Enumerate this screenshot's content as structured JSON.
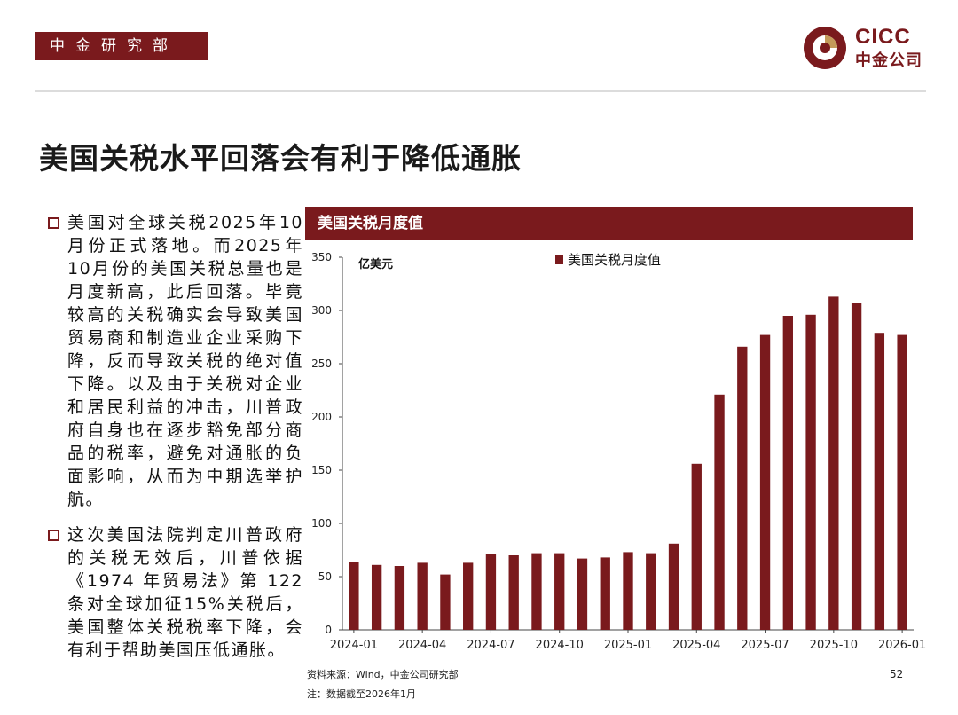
{
  "header": {
    "dept": "中金研究部",
    "logo_en": "CICC",
    "logo_cn": "中金公司"
  },
  "title": "美国关税水平回落会有利于降低通胀",
  "bullets": [
    "美国对全球关税2025年10月份正式落地。而2025年10月份的美国关税总量也是月度新高，此后回落。毕竟较高的关税确实会导致美国贸易商和制造业企业采购下降，反而导致关税的绝对值下降。以及由于关税对企业和居民利益的冲击，川普政府自身也在逐步豁免部分商品的税率，避免对通胀的负面影响，从而为中期选举护航。",
    "这次美国法院判定川普政府的关税无效后，川普依据《1974 年贸易法》第 122 条对全球加征15%关税后，美国整体关税税率下降，会有利于帮助美国压低通胀。"
  ],
  "chart_header": "美国关税月度值",
  "chart_data": {
    "type": "bar",
    "unit_label": "亿美元",
    "legend": "美国关税月度值",
    "legend_position": "top-right",
    "color": "#7a1a1d",
    "ylim": [
      0,
      350
    ],
    "yticks": [
      0,
      50,
      100,
      150,
      200,
      250,
      300,
      350
    ],
    "categories": [
      "2024-01",
      "2024-02",
      "2024-03",
      "2024-04",
      "2024-05",
      "2024-06",
      "2024-07",
      "2024-08",
      "2024-09",
      "2024-10",
      "2024-11",
      "2024-12",
      "2025-01",
      "2025-02",
      "2025-03",
      "2025-04",
      "2025-05",
      "2025-06",
      "2025-07",
      "2025-08",
      "2025-09",
      "2025-10",
      "2025-11",
      "2025-12",
      "2026-01"
    ],
    "xtick_labels": [
      "2024-01",
      "2024-04",
      "2024-07",
      "2024-10",
      "2025-01",
      "2025-04",
      "2025-07",
      "2025-10",
      "2026-01"
    ],
    "values": [
      64,
      61,
      60,
      63,
      52,
      63,
      71,
      70,
      72,
      72,
      67,
      68,
      73,
      72,
      81,
      156,
      221,
      266,
      277,
      295,
      296,
      313,
      307,
      279,
      277
    ]
  },
  "source": "资料来源：Wind，中金公司研究部",
  "note": "注：数据截至2026年1月",
  "page_number": "52"
}
